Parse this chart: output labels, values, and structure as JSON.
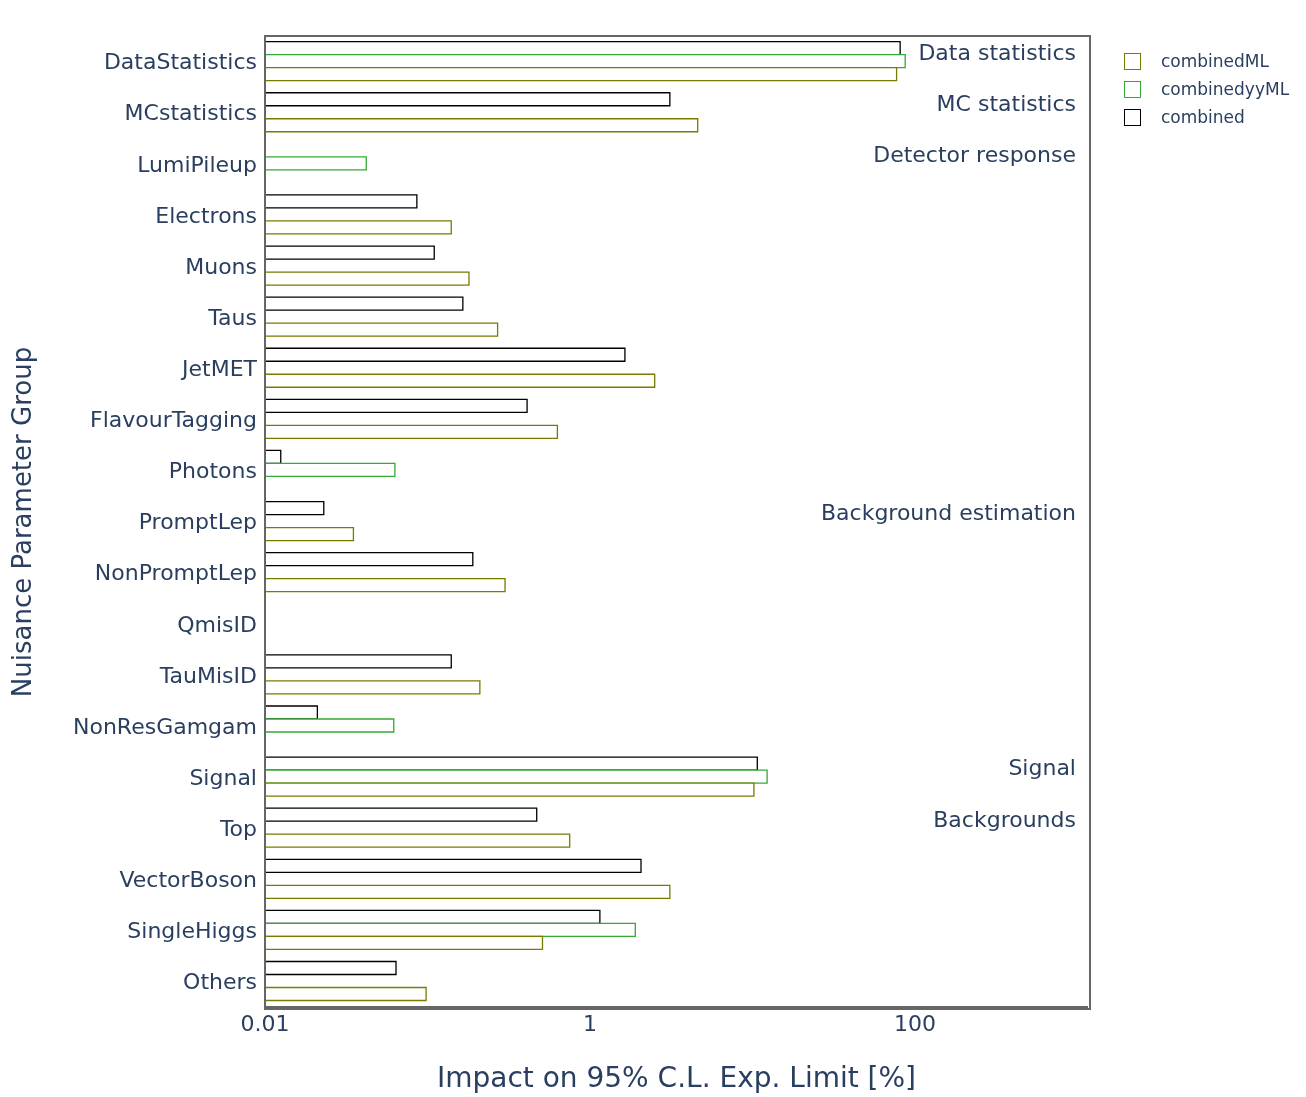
{
  "chart_data": {
    "type": "bar",
    "orientation": "horizontal",
    "log": "x",
    "xlabel": "Impact on 95% C.L. Exp. Limit [%]",
    "ylabel": "Nuisance Parameter Group",
    "categories": [
      "DataStatistics",
      "MCstatistics",
      "LumiPileup",
      "Electrons",
      "Muons",
      "Taus",
      "JetMET",
      "FlavourTagging",
      "Photons",
      "PromptLep",
      "NonPromptLep",
      "QmisID",
      "TauMisID",
      "NonResGamgam",
      "Signal",
      "Top",
      "VectorBoson",
      "SingleHiggs",
      "Others"
    ],
    "series": [
      {
        "name": "combinedML",
        "color": "#7a7a00",
        "values": [
          77,
          4.6,
          null,
          0.14,
          0.18,
          0.27,
          2.5,
          0.63,
          null,
          0.035,
          0.3,
          null,
          0.21,
          null,
          10.2,
          0.75,
          3.1,
          0.51,
          0.098
        ]
      },
      {
        "name": "combinedyyML",
        "color": "#33aa33",
        "values": [
          87,
          null,
          0.042,
          null,
          null,
          null,
          null,
          null,
          0.063,
          null,
          null,
          null,
          null,
          0.062,
          12.3,
          null,
          null,
          1.9,
          null
        ]
      },
      {
        "name": "combined",
        "color": "#000000",
        "values": [
          81,
          3.1,
          null,
          0.086,
          0.11,
          0.165,
          1.64,
          0.41,
          0.0125,
          0.023,
          0.19,
          null,
          0.14,
          0.021,
          10.7,
          0.47,
          2.06,
          1.15,
          0.064
        ]
      }
    ],
    "xlim": [
      0.01,
      1160
    ],
    "xticks": [
      0.01,
      1,
      100
    ],
    "grid": false,
    "legend": "top right",
    "annotations": [
      "Data statistics",
      "MC statistics",
      "Detector response",
      "Background estimation",
      "Signal",
      "Backgrounds"
    ]
  }
}
